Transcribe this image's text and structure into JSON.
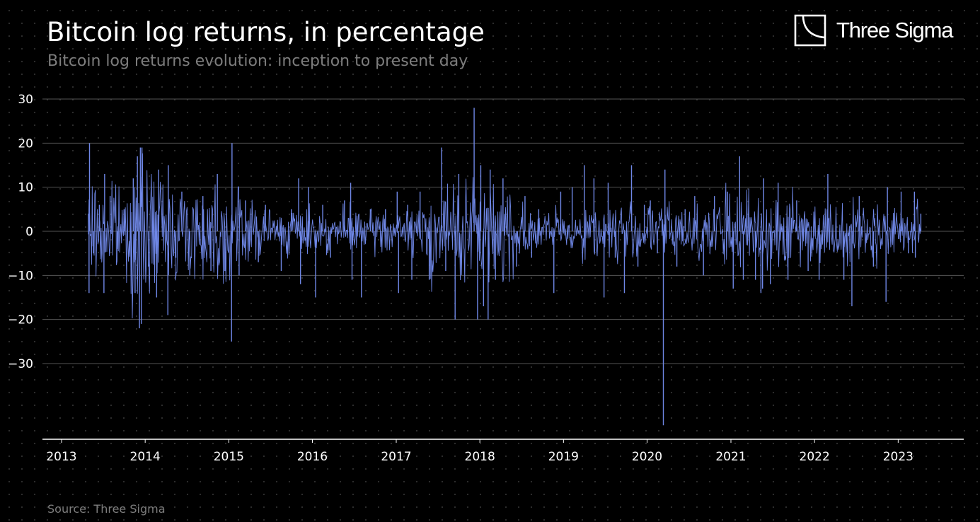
{
  "title": "Bitcoin log returns, in percentage",
  "subtitle": "Bitcoin log returns evolution: inception to present day",
  "source": "Source: Three Sigma",
  "logo": {
    "text": "Three Sigma",
    "icon": "three-sigma-logo-icon"
  },
  "colors": {
    "background": "#000000",
    "series": "#6f87e6",
    "grid": "#555555",
    "text": "#ffffff",
    "muted": "#7d7d7d"
  },
  "chart_data": {
    "type": "line",
    "title": "Bitcoin log returns, in percentage",
    "subtitle": "Bitcoin log returns evolution: inception to present day",
    "xlabel": "",
    "ylabel": "",
    "x_range": [
      "2013-01-01",
      "2023-12-31"
    ],
    "ylim": [
      -46,
      31
    ],
    "y_ticks": [
      30,
      20,
      10,
      0,
      -10,
      -20,
      -30
    ],
    "y_tick_labels": [
      "30",
      "20",
      "10",
      "0",
      "−10",
      "−20",
      "−30"
    ],
    "x_ticks": [
      "2013",
      "2014",
      "2015",
      "2016",
      "2017",
      "2018",
      "2019",
      "2020",
      "2021",
      "2022",
      "2023"
    ],
    "grid": "horizontal",
    "legend": "none",
    "series": [
      {
        "points": [
          [
            "2013-04-28",
            4
          ],
          [
            "2013-05-01",
            -14
          ],
          [
            "2013-05-03",
            20
          ],
          [
            "2013-05-20",
            -5
          ],
          [
            "2013-06-15",
            6
          ],
          [
            "2013-07-05",
            -14
          ],
          [
            "2013-07-08",
            13
          ],
          [
            "2013-08-01",
            8
          ],
          [
            "2013-09-01",
            -4
          ],
          [
            "2013-10-01",
            5
          ],
          [
            "2013-11-10",
            12
          ],
          [
            "2013-11-18",
            -14
          ],
          [
            "2013-11-28",
            17
          ],
          [
            "2013-12-07",
            -22
          ],
          [
            "2013-12-11",
            19
          ],
          [
            "2013-12-15",
            -21
          ],
          [
            "2013-12-18",
            19
          ],
          [
            "2014-01-15",
            -8
          ],
          [
            "2014-02-20",
            -15
          ],
          [
            "2014-03-01",
            14
          ],
          [
            "2014-04-10",
            -19
          ],
          [
            "2014-04-12",
            15
          ],
          [
            "2014-05-15",
            -6
          ],
          [
            "2014-06-10",
            9
          ],
          [
            "2014-07-15",
            -10
          ],
          [
            "2014-09-10",
            8
          ],
          [
            "2014-10-15",
            -9
          ],
          [
            "2014-11-12",
            13
          ],
          [
            "2014-12-15",
            -9
          ],
          [
            "2015-01-13",
            -25
          ],
          [
            "2015-01-15",
            20
          ],
          [
            "2015-02-15",
            -10
          ],
          [
            "2015-03-15",
            7
          ],
          [
            "2015-05-10",
            -7
          ],
          [
            "2015-06-10",
            6
          ],
          [
            "2015-08-18",
            -9
          ],
          [
            "2015-10-01",
            5
          ],
          [
            "2015-11-02",
            12
          ],
          [
            "2015-11-10",
            -12
          ],
          [
            "2015-12-15",
            10
          ],
          [
            "2016-01-15",
            -15
          ],
          [
            "2016-02-15",
            6
          ],
          [
            "2016-03-20",
            -6
          ],
          [
            "2016-05-20",
            7
          ],
          [
            "2016-06-16",
            11
          ],
          [
            "2016-06-22",
            -11
          ],
          [
            "2016-08-02",
            -15
          ],
          [
            "2016-09-10",
            5
          ],
          [
            "2016-11-15",
            5
          ],
          [
            "2017-01-05",
            9
          ],
          [
            "2017-01-11",
            -14
          ],
          [
            "2017-02-20",
            6
          ],
          [
            "2017-03-10",
            -11
          ],
          [
            "2017-04-15",
            9
          ],
          [
            "2017-05-25",
            -11
          ],
          [
            "2017-07-18",
            19
          ],
          [
            "2017-08-05",
            -9
          ],
          [
            "2017-09-15",
            -20
          ],
          [
            "2017-10-01",
            13
          ],
          [
            "2017-12-07",
            28
          ],
          [
            "2017-12-22",
            -20
          ],
          [
            "2018-01-05",
            15
          ],
          [
            "2018-01-17",
            -17
          ],
          [
            "2018-02-06",
            -20
          ],
          [
            "2018-02-15",
            14
          ],
          [
            "2018-03-10",
            -11
          ],
          [
            "2018-04-12",
            12
          ],
          [
            "2018-06-10",
            -8
          ],
          [
            "2018-07-17",
            8
          ],
          [
            "2018-08-15",
            -6
          ],
          [
            "2018-09-15",
            5
          ],
          [
            "2018-11-20",
            -14
          ],
          [
            "2018-12-20",
            9
          ],
          [
            "2019-02-08",
            10
          ],
          [
            "2019-04-02",
            15
          ],
          [
            "2019-05-14",
            12
          ],
          [
            "2019-06-27",
            -15
          ],
          [
            "2019-07-15",
            11
          ],
          [
            "2019-08-15",
            -6
          ],
          [
            "2019-09-24",
            -14
          ],
          [
            "2019-10-25",
            15
          ],
          [
            "2019-11-22",
            -8
          ],
          [
            "2019-12-20",
            6
          ],
          [
            "2020-01-15",
            7
          ],
          [
            "2020-02-15",
            -5
          ],
          [
            "2020-03-12",
            -44
          ],
          [
            "2020-03-19",
            14
          ],
          [
            "2020-05-10",
            -8
          ],
          [
            "2020-06-15",
            5
          ],
          [
            "2020-07-27",
            8
          ],
          [
            "2020-09-03",
            -10
          ],
          [
            "2020-10-21",
            8
          ],
          [
            "2020-12-17",
            9
          ],
          [
            "2021-01-11",
            -13
          ],
          [
            "2021-02-08",
            17
          ],
          [
            "2021-02-24",
            -11
          ],
          [
            "2021-04-18",
            -11
          ],
          [
            "2021-05-12",
            -14
          ],
          [
            "2021-05-19",
            -13
          ],
          [
            "2021-05-24",
            12
          ],
          [
            "2021-06-22",
            -12
          ],
          [
            "2021-07-26",
            11
          ],
          [
            "2021-09-07",
            -11
          ],
          [
            "2021-10-15",
            7
          ],
          [
            "2021-12-04",
            -9
          ],
          [
            "2022-01-21",
            -11
          ],
          [
            "2022-02-28",
            13
          ],
          [
            "2022-05-09",
            -11
          ],
          [
            "2022-06-13",
            -17
          ],
          [
            "2022-07-15",
            8
          ],
          [
            "2022-09-15",
            -8
          ],
          [
            "2022-11-09",
            -16
          ],
          [
            "2022-11-15",
            10
          ],
          [
            "2023-01-14",
            9
          ],
          [
            "2023-02-15",
            -5
          ],
          [
            "2023-03-13",
            9
          ],
          [
            "2023-03-17",
            -6
          ],
          [
            "2023-04-10",
            4
          ]
        ]
      }
    ]
  }
}
